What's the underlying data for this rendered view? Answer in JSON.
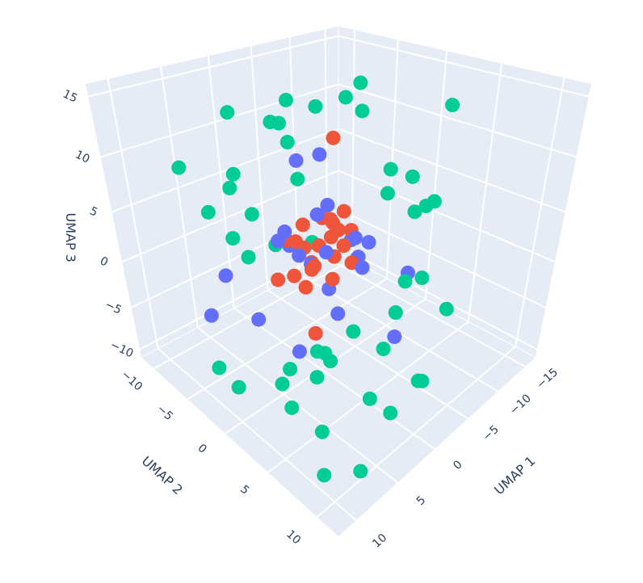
{
  "chart_data": {
    "type": "scatter3d",
    "xlabel": "UMAP 1",
    "ylabel": "UMAP 2",
    "zlabel": "UMAP 3",
    "xlim": [
      -17,
      12
    ],
    "ylim": [
      -12,
      12
    ],
    "zlim": [
      -11,
      16
    ],
    "xticks": [
      {
        "value": -15,
        "label": "−15"
      },
      {
        "value": -10,
        "label": "−10"
      },
      {
        "value": -5,
        "label": "−5"
      },
      0,
      5,
      10
    ],
    "yticks": [
      {
        "value": -10,
        "label": "−10"
      },
      {
        "value": -5,
        "label": "−5"
      },
      0,
      5,
      10
    ],
    "zticks": [
      {
        "value": -10,
        "label": "−10"
      },
      {
        "value": -5,
        "label": "−5"
      },
      0,
      5,
      10,
      15
    ],
    "grid": true,
    "series": [
      {
        "color": "#00cc96",
        "x": [
          -10,
          -8,
          6,
          9,
          -12,
          -3,
          2,
          8,
          -14,
          -6,
          4,
          10,
          -9,
          0,
          -2,
          7,
          -11,
          3,
          -5,
          5,
          11,
          -7,
          1,
          -13,
          -4,
          6,
          9,
          -1,
          4,
          -15,
          2,
          -8,
          8,
          -3,
          7,
          -6,
          3,
          10,
          -10,
          0,
          5,
          -12,
          1,
          -5,
          6,
          -2,
          11,
          -9
        ],
        "y": [
          -9,
          -2,
          5,
          8,
          3,
          -6,
          7,
          -4,
          1,
          -10,
          4,
          9,
          -3,
          10,
          -7,
          2,
          -1,
          6,
          -8,
          -5,
          7,
          3,
          -9,
          0,
          8,
          -3,
          5,
          6,
          -6,
          -4,
          9,
          -8,
          1,
          -5,
          10,
          6,
          -2,
          0,
          5,
          -9,
          4,
          -7,
          2,
          9,
          -10,
          7,
          -1,
          3
        ],
        "z": [
          10,
          12,
          -2,
          -6,
          4,
          13,
          -8,
          7,
          2,
          9,
          -4,
          -9,
          14,
          -5,
          11,
          -7,
          6,
          -1,
          8,
          3,
          -3,
          -6,
          12,
          5,
          -9,
          10,
          -2,
          -5,
          7,
          1,
          -8,
          -4,
          9,
          6,
          -10,
          0,
          3,
          -7,
          14,
          -3,
          -6,
          11,
          -8,
          -1,
          8,
          2,
          -5,
          4
        ]
      },
      {
        "color": "#636efa",
        "x": [
          -2.0,
          1.5,
          -0.8,
          2.6,
          -3.3,
          0.4,
          -1.6,
          3.2,
          -2.8,
          1.0,
          -0.2,
          2.1,
          -4.2,
          5.5,
          -1.1,
          0.8,
          -5.0,
          -6.5,
          3.8,
          -7.0,
          4.2,
          6.0,
          -2.5,
          1.2
        ],
        "y": [
          2.5,
          -2.4,
          3.1,
          0.2,
          1.4,
          -3.0,
          -0.4,
          -1.5,
          2.9,
          1.9,
          -1.1,
          2.6,
          0.0,
          -2.0,
          3.6,
          0.6,
          -7.0,
          -5.5,
          1.0,
          4.0,
          -7.5,
          -8.0,
          6.0,
          3.0
        ],
        "z": [
          2.0,
          3.5,
          4.6,
          2.9,
          0.8,
          1.4,
          5.8,
          3.7,
          3.3,
          -0.2,
          0.2,
          4.2,
          1.6,
          -3.5,
          1.9,
          6.2,
          6.5,
          7.2,
          -6.0,
          -1.0,
          -2.5,
          -6.5,
          -4.5,
          -2.0
        ]
      },
      {
        "color": "#ef553b",
        "x": [
          -1.2,
          0.5,
          -2.3,
          1.8,
          -0.4,
          -3.1,
          0.9,
          -1.8,
          2.4,
          -0.6,
          1.1,
          -2.7,
          0.2,
          -1.5,
          3.0,
          -3.6,
          0.7,
          -0.9,
          1.6,
          -2.1,
          4.5,
          -9.0,
          2.0,
          -4.0
        ],
        "y": [
          0.3,
          -1.2,
          1.5,
          0.8,
          -2.1,
          -0.5,
          2.2,
          -1.6,
          -0.3,
          1.0,
          -2.6,
          0.4,
          1.8,
          -0.9,
          1.2,
          -1.8,
          0.1,
          2.7,
          -1.4,
          0.9,
          3.5,
          -6.0,
          -3.0,
          -4.5
        ],
        "z": [
          3.2,
          2.1,
          4.0,
          1.5,
          3.6,
          2.8,
          0.9,
          1.2,
          3.9,
          5.1,
          2.4,
          1.8,
          2.6,
          4.4,
          0.5,
          3.1,
          1.0,
          2.0,
          -0.4,
          5.6,
          -2.0,
          8.0,
          -1.5,
          -3.0
        ]
      }
    ]
  }
}
